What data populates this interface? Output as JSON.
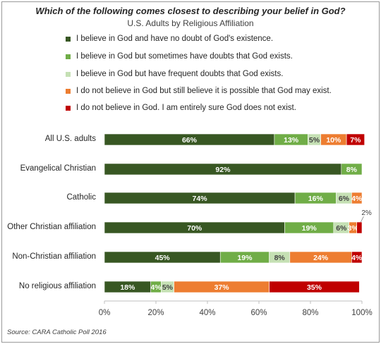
{
  "chart_data": {
    "type": "bar",
    "orientation": "horizontal",
    "stacked": true,
    "title": "Which of the following comes closest to describing your belief in God?",
    "subtitle": "U.S. Adults by Religious Affiliation",
    "categories": [
      "All U.S. adults",
      "Evangelical Christian",
      "Catholic",
      "Other Christian affiliation",
      "Non-Christian affiliation",
      "No religious affiliation"
    ],
    "series": [
      {
        "name": "I believe in God and have no doubt of God's existence.",
        "color": "#385723",
        "values": [
          66,
          92,
          74,
          70,
          45,
          18
        ]
      },
      {
        "name": "I believe in God but sometimes have doubts that God exists.",
        "color": "#70ad47",
        "values": [
          13,
          8,
          16,
          19,
          19,
          4
        ]
      },
      {
        "name": "I believe in God but have frequent doubts that God exists.",
        "color": "#c5e0b4",
        "values": [
          5,
          0,
          6,
          6,
          8,
          5
        ]
      },
      {
        "name": "I do not believe in God but still believe it is possible that God may exist.",
        "color": "#ed7d31",
        "values": [
          10,
          0,
          4,
          3,
          24,
          37
        ]
      },
      {
        "name": "I do not believe in God. I am entirely sure God does not exist.",
        "color": "#c00000",
        "values": [
          7,
          0,
          0,
          2,
          4,
          35
        ]
      }
    ],
    "data_label_color": {
      "dark": "#ffffff",
      "light": "#404040"
    },
    "data_labels": [
      [
        "66%",
        "13%",
        "5%",
        "10%",
        "7%"
      ],
      [
        "92%",
        "8%",
        "",
        "",
        ""
      ],
      [
        "74%",
        "16%",
        "6%",
        "4%",
        ""
      ],
      [
        "70%",
        "19%",
        "6%",
        "3%",
        "2%"
      ],
      [
        "45%",
        "19%",
        "8%",
        "24%",
        "4%"
      ],
      [
        "18%",
        "4%",
        "5%",
        "37%",
        "35%"
      ]
    ],
    "xlim": [
      0,
      100
    ],
    "xticks": [
      "0%",
      "20%",
      "40%",
      "60%",
      "80%",
      "100%"
    ],
    "legend_position": "top",
    "grid": false,
    "source": "Source: CARA Catholic Poll 2016"
  }
}
